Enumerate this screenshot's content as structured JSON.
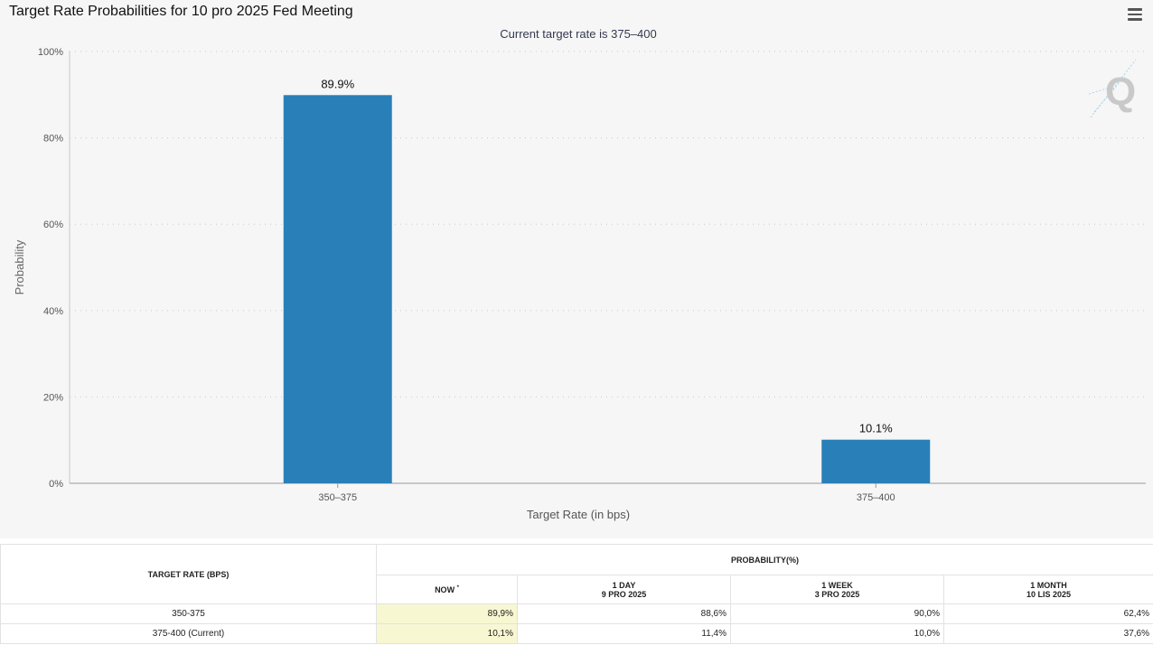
{
  "chart_data": {
    "type": "bar",
    "title": "Target Rate Probabilities for 10 pro 2025 Fed Meeting",
    "subtitle": "Current target rate is 375–400",
    "xlabel": "Target Rate (in bps)",
    "ylabel": "Probability",
    "categories": [
      "350–375",
      "375–400"
    ],
    "values": [
      89.9,
      10.1
    ],
    "data_labels": [
      "89.9%",
      "10.1%"
    ],
    "ylim": [
      0,
      100
    ],
    "yticks": [
      {
        "value": 0,
        "label": "0%"
      },
      {
        "value": 20,
        "label": "20%"
      },
      {
        "value": 40,
        "label": "40%"
      },
      {
        "value": 60,
        "label": "60%"
      },
      {
        "value": 80,
        "label": "80%"
      },
      {
        "value": 100,
        "label": "100%"
      }
    ],
    "grid": true,
    "bar_color": "#2980b9"
  },
  "watermark_letter": "Q",
  "menu": {
    "icon": "hamburger-menu-icon"
  },
  "table": {
    "rate_header": "TARGET RATE (BPS)",
    "prob_header": "PROBABILITY(%)",
    "columns": [
      {
        "line1": "NOW",
        "marker": "*",
        "line2": ""
      },
      {
        "line1": "1 DAY",
        "line2": "9 PRO 2025"
      },
      {
        "line1": "1 WEEK",
        "line2": "3 PRO 2025"
      },
      {
        "line1": "1 MONTH",
        "line2": "10 LIS 2025"
      }
    ],
    "rows": [
      {
        "rate": "350-375",
        "values": [
          "89,9%",
          "88,6%",
          "90,0%",
          "62,4%"
        ]
      },
      {
        "rate": "375-400 (Current)",
        "values": [
          "10,1%",
          "11,4%",
          "10,0%",
          "37,6%"
        ]
      }
    ],
    "now_highlight_color": "#f7f7d2"
  }
}
